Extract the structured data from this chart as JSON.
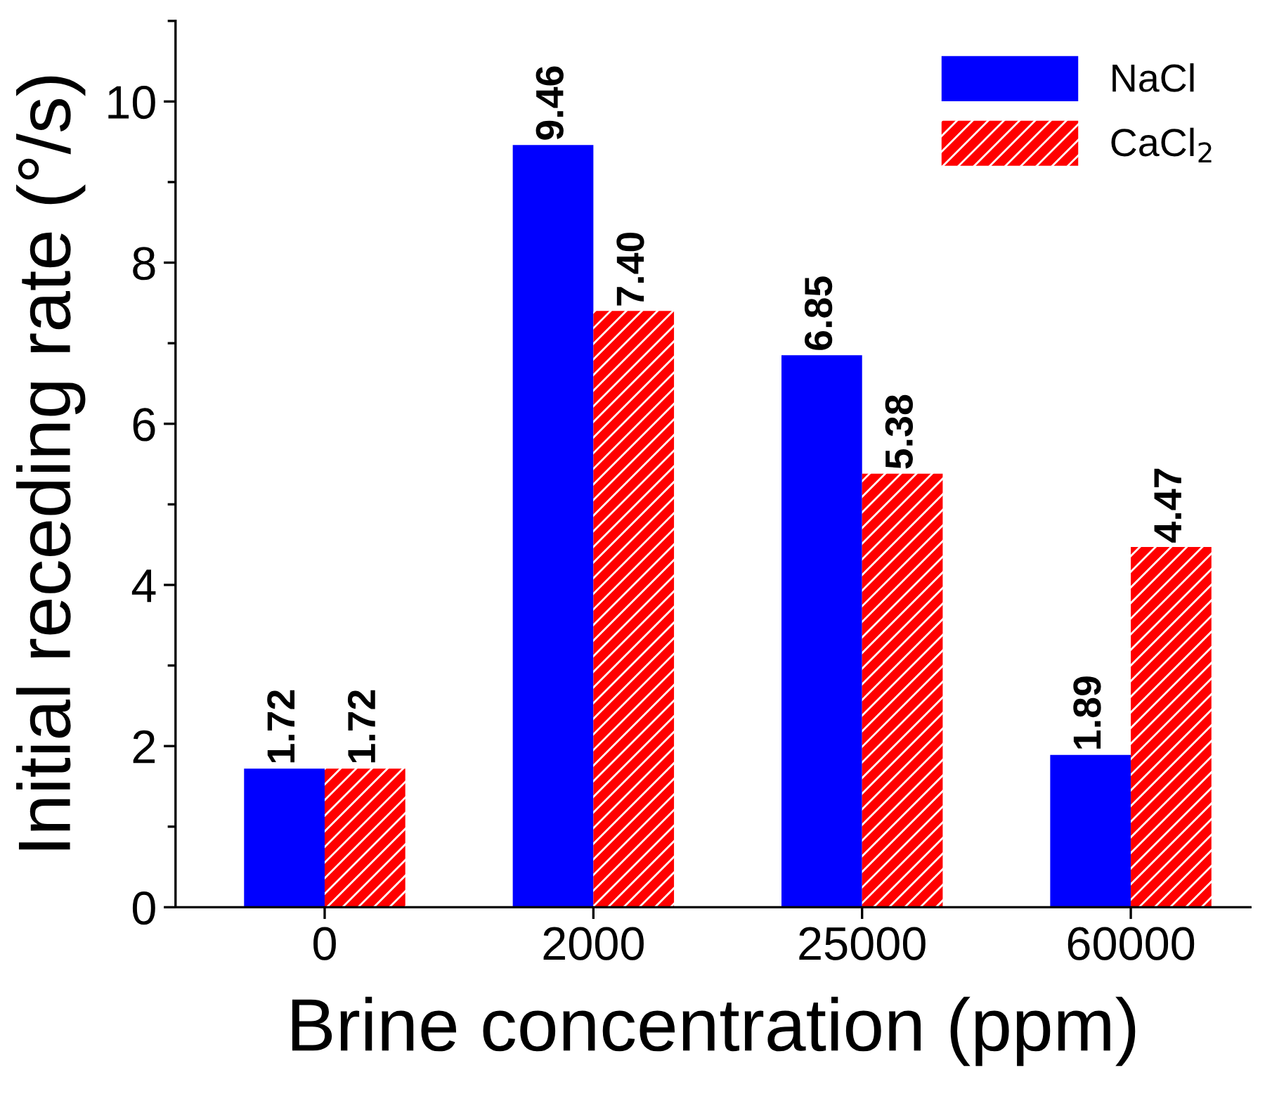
{
  "chart_data": {
    "type": "bar",
    "xlabel": "Brine concentration (ppm)",
    "ylabel": "Initial receding rate (°/s)",
    "categories": [
      "0",
      "2000",
      "25000",
      "60000"
    ],
    "series": [
      {
        "name": "NaCl",
        "color": "#0000ff",
        "values": [
          1.72,
          9.46,
          6.85,
          1.89
        ]
      },
      {
        "name": "CaCl$_{2}$",
        "color": "#ff0000",
        "values": [
          1.72,
          7.4,
          5.38,
          4.47
        ]
      }
    ],
    "value_labels": [
      [
        "1.72",
        "9.46",
        "6.85",
        "1.89"
      ],
      [
        "1.72",
        "7.40",
        "5.38",
        "4.47"
      ]
    ],
    "ylim": [
      0,
      11
    ],
    "yticks": [
      0,
      2,
      4,
      6,
      8,
      10
    ],
    "grid": false,
    "legend": "top right"
  }
}
